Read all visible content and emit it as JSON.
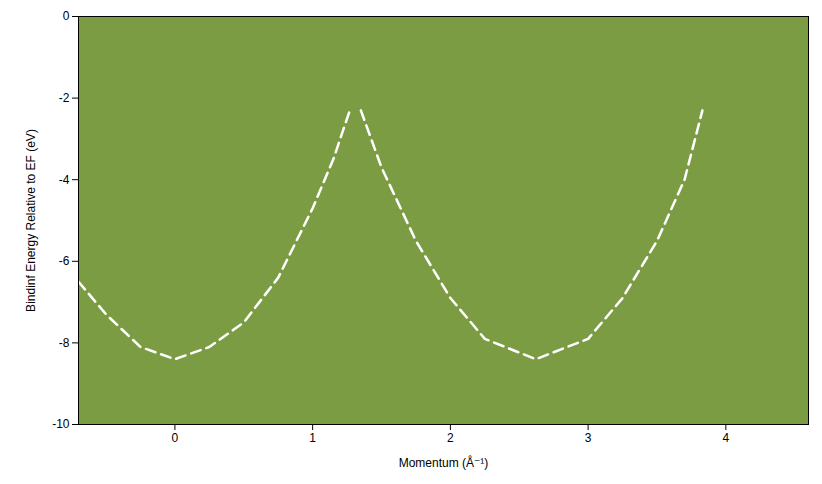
{
  "chart_data": {
    "type": "line",
    "x_label": "Momentum (Å⁻¹)",
    "y_label": "Bindinf Energy Relative to EF (eV)",
    "xlim": [
      -0.7,
      4.6
    ],
    "xticks": [
      0,
      1,
      2,
      3,
      4
    ],
    "ylim": [
      -10,
      0
    ],
    "yticks": [
      0,
      -2,
      -4,
      -6,
      -8,
      -10
    ],
    "grid": false,
    "series": [
      {
        "color": "#ffffff",
        "line_style": "dashed",
        "x": [
          -0.7,
          -0.5,
          -0.25,
          0,
          0.25,
          0.5,
          0.75,
          1.0,
          1.15,
          1.27
        ],
        "values": [
          -6.5,
          -7.3,
          -8.1,
          -8.4,
          -8.1,
          -7.5,
          -6.4,
          -4.7,
          -3.5,
          -2.3
        ]
      },
      {
        "color": "#ffffff",
        "line_style": "dashed",
        "x": [
          1.35,
          1.5,
          1.75,
          2.0,
          2.25,
          2.62,
          3.0,
          3.25,
          3.5,
          3.7,
          3.83
        ],
        "values": [
          -2.3,
          -3.7,
          -5.5,
          -6.9,
          -7.9,
          -8.4,
          -7.9,
          -6.9,
          -5.5,
          -4.0,
          -2.3
        ]
      }
    ]
  }
}
